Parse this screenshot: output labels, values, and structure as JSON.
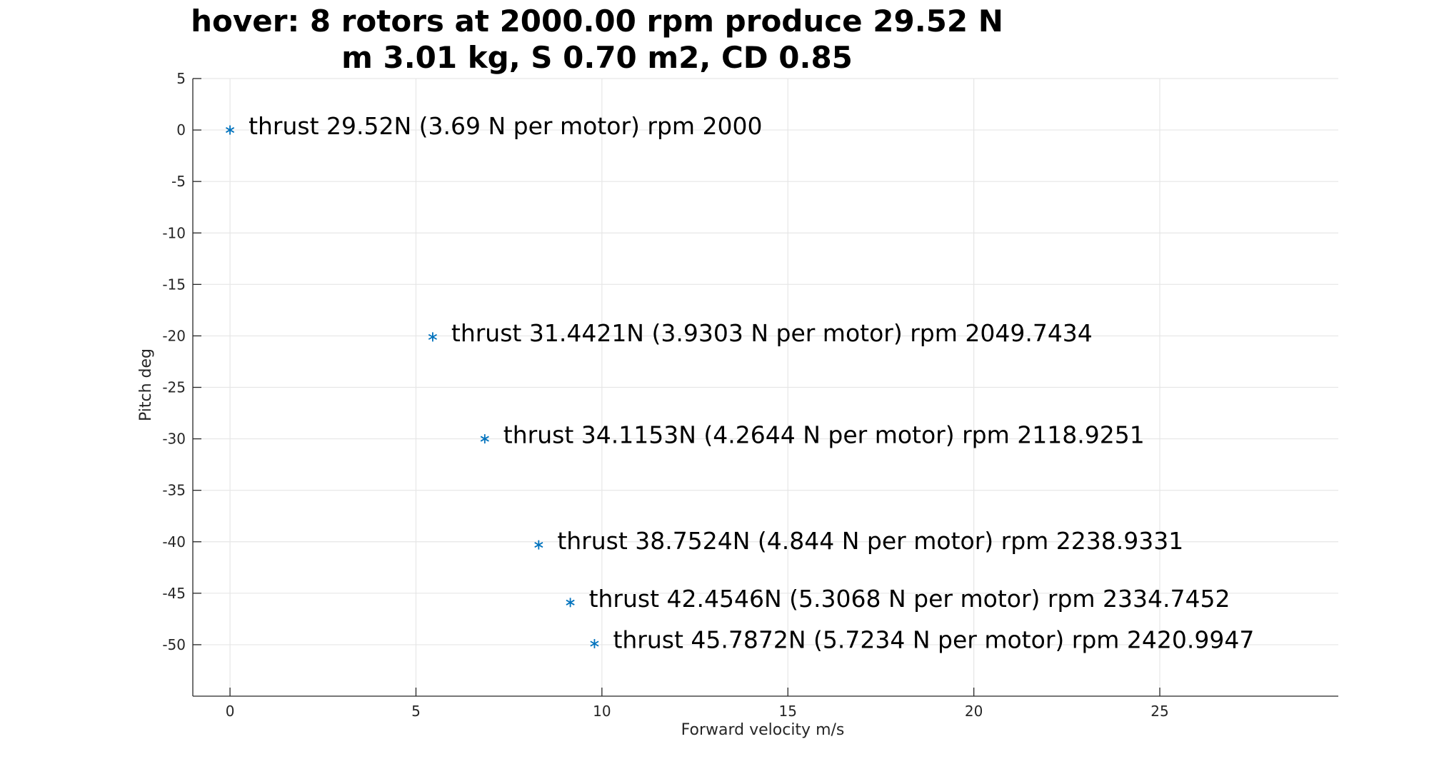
{
  "chart_data": {
    "type": "scatter",
    "title": [
      "hover: 8 rotors at 2000.00 rpm produce 29.52 N",
      "m 3.01 kg, S 0.70 m2, CD 0.85"
    ],
    "xlabel": "Forward velocity m/s",
    "ylabel": "Pitch deg",
    "xlim": [
      -1,
      29.8
    ],
    "ylim": [
      -55,
      5
    ],
    "xticks": [
      0,
      5,
      10,
      15,
      20,
      25
    ],
    "yticks": [
      5,
      0,
      -5,
      -10,
      -15,
      -20,
      -25,
      -30,
      -35,
      -40,
      -45,
      -50
    ],
    "grid": true,
    "marker": "asterisk",
    "color": "#0072BD",
    "points": [
      {
        "x": 0,
        "y": 0,
        "label": "thrust 29.52N (3.69 N per motor) rpm 2000"
      },
      {
        "x": 5.45,
        "y": -20.1,
        "label": "thrust 31.4421N (3.9303 N per motor) rpm 2049.7434"
      },
      {
        "x": 6.85,
        "y": -30.0,
        "label": "thrust 34.1153N (4.2644 N per motor) rpm 2118.9251"
      },
      {
        "x": 8.3,
        "y": -40.3,
        "label": "thrust 38.7524N (4.844 N per motor) rpm 2238.9331"
      },
      {
        "x": 9.15,
        "y": -45.9,
        "label": "thrust 42.4546N (5.3068 N per motor) rpm 2334.7452"
      },
      {
        "x": 9.8,
        "y": -49.9,
        "label": "thrust 45.7872N (5.7234 N per motor) rpm 2420.9947"
      }
    ]
  }
}
